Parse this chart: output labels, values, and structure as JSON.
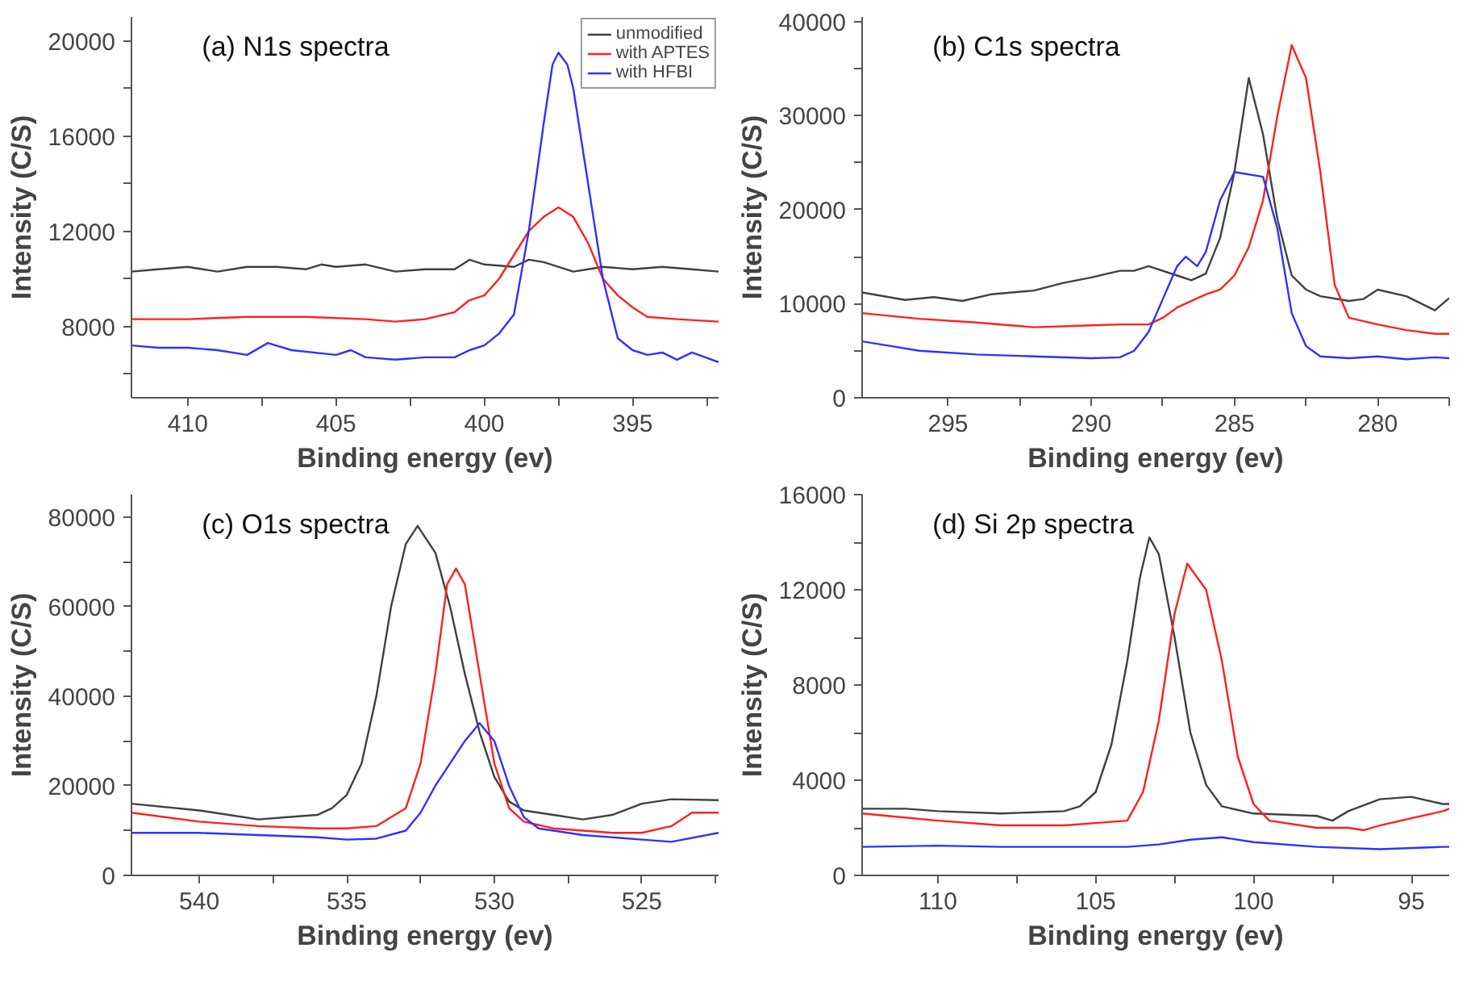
{
  "chart_data": [
    {
      "type": "line",
      "title": "(a) N1s spectra",
      "xlabel": "Binding energy (ev)",
      "ylabel": "Intensity (C/S)",
      "xlim": [
        411.9,
        392.1
      ],
      "ylim": [
        5000,
        21000
      ],
      "xticks": [
        410,
        {
          "value": 407.5,
          "label": null
        },
        405,
        {
          "value": 402.5,
          "label": null
        },
        400,
        {
          "value": 397.5,
          "label": null
        },
        395,
        {
          "value": 392.5,
          "label": null
        }
      ],
      "yticks": [
        {
          "value": 6000,
          "label": null
        },
        8000,
        {
          "value": 10000,
          "label": null
        },
        12000,
        {
          "value": 14000,
          "label": null
        },
        16000,
        {
          "value": 18000,
          "label": null
        },
        20000
      ],
      "grid": false,
      "legend": "top right",
      "series": [
        {
          "name": "unmodified",
          "color": "#404040",
          "x": [
            411.9,
            411,
            410,
            409,
            408,
            407,
            406,
            405.5,
            405,
            404,
            403,
            402,
            401,
            400.5,
            400,
            399,
            398.5,
            398,
            397,
            396.5,
            396,
            395,
            394,
            393,
            392.1
          ],
          "values": [
            10300,
            10400,
            10500,
            10300,
            10500,
            10500,
            10400,
            10600,
            10500,
            10600,
            10300,
            10400,
            10400,
            10800,
            10600,
            10500,
            10800,
            10700,
            10300,
            10400,
            10500,
            10400,
            10500,
            10400,
            10300
          ]
        },
        {
          "name": "with APTES",
          "color": "#ff2020",
          "x": [
            411.9,
            410,
            408,
            406,
            404,
            403,
            402,
            401,
            400.5,
            400,
            399.5,
            399,
            398.5,
            398,
            397.5,
            397,
            396.5,
            396,
            395.5,
            395,
            394.5,
            393.5,
            392.1
          ],
          "values": [
            8300,
            8300,
            8400,
            8400,
            8300,
            8200,
            8300,
            8600,
            9100,
            9300,
            10000,
            11000,
            12000,
            12600,
            13000,
            12600,
            11500,
            10000,
            9300,
            8800,
            8400,
            8300,
            8200
          ]
        },
        {
          "name": "with HFBI",
          "color": "#3030ff",
          "x": [
            411.9,
            411,
            410,
            409,
            408,
            407.3,
            406.5,
            405,
            404.5,
            404,
            403,
            402,
            401,
            400.5,
            400,
            399.5,
            399,
            398.5,
            398,
            397.7,
            397.5,
            397.2,
            397,
            396.5,
            396,
            395.5,
            395,
            394.5,
            394,
            393.5,
            393,
            392.1
          ],
          "values": [
            7200,
            7100,
            7100,
            7000,
            6800,
            7300,
            7000,
            6800,
            7000,
            6700,
            6600,
            6700,
            6700,
            7000,
            7200,
            7700,
            8500,
            12000,
            16500,
            19000,
            19500,
            19000,
            18000,
            14000,
            10000,
            7500,
            7000,
            6800,
            6900,
            6600,
            6900,
            6500
          ]
        }
      ]
    },
    {
      "type": "line",
      "title": "(b) C1s spectra",
      "xlabel": "Binding energy (ev)",
      "ylabel": "Intensity (C/S)",
      "xlim": [
        298,
        277.5
      ],
      "ylim": [
        0,
        40500
      ],
      "xticks": [
        295,
        {
          "value": 292.5,
          "label": null
        },
        290,
        {
          "value": 287.5,
          "label": null
        },
        285,
        {
          "value": 282.5,
          "label": null
        },
        280,
        {
          "value": 277.5,
          "label": null
        }
      ],
      "yticks": [
        0,
        {
          "value": 5000,
          "label": null
        },
        10000,
        {
          "value": 15000,
          "label": null
        },
        20000,
        {
          "value": 25000,
          "label": null
        },
        30000,
        {
          "value": 35000,
          "label": null
        },
        40000
      ],
      "grid": false,
      "series": [
        {
          "color": "#404040",
          "x": [
            298,
            296.5,
            295.5,
            294.5,
            293.5,
            292,
            291,
            290,
            289,
            288.5,
            288,
            287,
            286.5,
            286,
            285.5,
            285,
            284.5,
            284,
            283.5,
            283,
            282.5,
            282,
            281,
            280.5,
            280,
            279,
            278,
            277.5
          ],
          "values": [
            11200,
            10400,
            10700,
            10300,
            11000,
            11400,
            12200,
            12800,
            13500,
            13500,
            14000,
            13000,
            12500,
            13200,
            17000,
            24000,
            34000,
            28000,
            19000,
            13000,
            11500,
            10800,
            10300,
            10500,
            11500,
            10800,
            9300,
            10600
          ]
        },
        {
          "color": "#ff2020",
          "x": [
            298,
            296,
            294,
            292,
            290,
            289,
            288,
            287.5,
            287,
            286,
            285.5,
            285,
            284.5,
            284,
            283.5,
            283,
            282.5,
            282,
            281.5,
            281,
            280,
            279,
            278,
            277.5
          ],
          "values": [
            9000,
            8400,
            8000,
            7500,
            7700,
            7800,
            7800,
            8500,
            9600,
            11000,
            11500,
            13000,
            16000,
            21000,
            30000,
            37500,
            34000,
            24000,
            12000,
            8500,
            7800,
            7200,
            6800,
            6800
          ]
        },
        {
          "color": "#3030ff",
          "x": [
            298,
            297,
            296,
            294,
            292,
            290,
            289,
            288.5,
            288,
            287.5,
            287,
            286.7,
            286.3,
            286,
            285.5,
            285,
            284,
            283.5,
            283,
            282.5,
            282,
            281,
            280,
            279,
            278,
            277.5
          ],
          "values": [
            6000,
            5500,
            5000,
            4600,
            4400,
            4200,
            4300,
            5000,
            7000,
            10500,
            14000,
            15000,
            14000,
            15500,
            21000,
            24000,
            23500,
            18000,
            9000,
            5500,
            4400,
            4200,
            4400,
            4100,
            4300,
            4200
          ]
        }
      ]
    },
    {
      "type": "line",
      "title": "(c) O1s spectra",
      "xlabel": "Binding energy (ev)",
      "ylabel": "Intensity (C/S)",
      "xlim": [
        542.3,
        522.4
      ],
      "ylim": [
        0,
        85000
      ],
      "xticks": [
        540,
        {
          "value": 537.5,
          "label": null
        },
        535,
        {
          "value": 532.5,
          "label": null
        },
        530,
        {
          "value": 527.5,
          "label": null
        },
        525,
        {
          "value": 522.5,
          "label": null
        }
      ],
      "yticks": [
        0,
        {
          "value": 10000,
          "label": null
        },
        20000,
        {
          "value": 30000,
          "label": null
        },
        40000,
        {
          "value": 50000,
          "label": null
        },
        60000,
        {
          "value": 70000,
          "label": null
        },
        80000
      ],
      "grid": false,
      "series": [
        {
          "color": "#404040",
          "x": [
            542.3,
            540,
            539,
            538,
            537,
            536,
            535.5,
            535,
            534.5,
            534,
            533.5,
            533,
            532.6,
            532,
            531.5,
            531,
            530.5,
            530,
            529.5,
            529,
            528,
            527,
            526,
            525,
            524,
            522.4
          ],
          "values": [
            16000,
            14500,
            13500,
            12500,
            13000,
            13500,
            15000,
            18000,
            25000,
            40000,
            60000,
            74000,
            78000,
            72000,
            60000,
            45000,
            32000,
            22000,
            16500,
            14500,
            13500,
            12500,
            13500,
            16000,
            17000,
            16800
          ]
        },
        {
          "color": "#ff2020",
          "x": [
            542.3,
            540,
            538,
            536,
            535,
            534,
            533,
            532.5,
            532,
            531.6,
            531.3,
            531,
            530.5,
            530,
            529.5,
            529,
            528,
            527,
            526,
            525,
            524,
            523.3,
            522.4
          ],
          "values": [
            14000,
            12000,
            11000,
            10500,
            10500,
            11000,
            15000,
            25000,
            45000,
            65000,
            68500,
            65000,
            45000,
            25000,
            15000,
            12000,
            10500,
            10000,
            9500,
            9500,
            11000,
            14000,
            14000
          ]
        },
        {
          "color": "#3030ff",
          "x": [
            542.3,
            540,
            538,
            536,
            535,
            534,
            533,
            532.5,
            532,
            531.5,
            531,
            530.5,
            530,
            529.5,
            529,
            528.5,
            527,
            525,
            524,
            522.4
          ],
          "values": [
            9500,
            9500,
            9000,
            8500,
            8000,
            8200,
            10000,
            14000,
            20000,
            25000,
            30000,
            34000,
            30000,
            20000,
            13000,
            10500,
            9000,
            8000,
            7500,
            9500
          ]
        }
      ]
    },
    {
      "type": "line",
      "title": "(d) Si 2p spectra",
      "xlabel": "Binding energy (ev)",
      "ylabel": "Intensity (C/S)",
      "xlim": [
        112.4,
        93.8
      ],
      "ylim": [
        0,
        16000
      ],
      "xticks": [
        110,
        {
          "value": 107.5,
          "label": null
        },
        105,
        {
          "value": 102.5,
          "label": null
        },
        100,
        {
          "value": 97.5,
          "label": null
        },
        95
      ],
      "yticks": [
        0,
        {
          "value": 2000,
          "label": null
        },
        4000,
        {
          "value": 6000,
          "label": null
        },
        8000,
        {
          "value": 10000,
          "label": null
        },
        12000,
        {
          "value": 14000,
          "label": null
        },
        16000
      ],
      "grid": false,
      "series": [
        {
          "color": "#404040",
          "x": [
            112.4,
            111,
            110,
            108,
            106,
            105.5,
            105,
            104.5,
            104,
            103.6,
            103.3,
            103,
            102.5,
            102,
            101.5,
            101,
            100,
            98,
            97.5,
            97,
            96,
            95,
            94,
            93.8
          ],
          "values": [
            2800,
            2800,
            2700,
            2600,
            2700,
            2900,
            3500,
            5500,
            9000,
            12500,
            14200,
            13500,
            10000,
            6000,
            3800,
            2900,
            2600,
            2500,
            2300,
            2700,
            3200,
            3300,
            3000,
            3000
          ]
        },
        {
          "color": "#ff2020",
          "x": [
            112.4,
            110,
            108,
            106,
            105,
            104,
            103.5,
            103,
            102.5,
            102.1,
            101.5,
            101,
            100.5,
            100,
            99.5,
            98,
            97,
            96.5,
            96,
            95,
            94,
            93.8
          ],
          "values": [
            2600,
            2300,
            2100,
            2100,
            2200,
            2300,
            3500,
            6500,
            11000,
            13100,
            12000,
            9000,
            5000,
            3000,
            2300,
            2000,
            2000,
            1900,
            2100,
            2400,
            2700,
            2800
          ]
        },
        {
          "color": "#3030ff",
          "x": [
            112.4,
            110,
            108,
            106,
            104,
            103,
            102,
            101,
            100,
            98,
            96,
            94,
            93.8
          ],
          "values": [
            1200,
            1250,
            1200,
            1200,
            1200,
            1300,
            1500,
            1600,
            1400,
            1200,
            1100,
            1200,
            1200
          ]
        }
      ]
    }
  ]
}
